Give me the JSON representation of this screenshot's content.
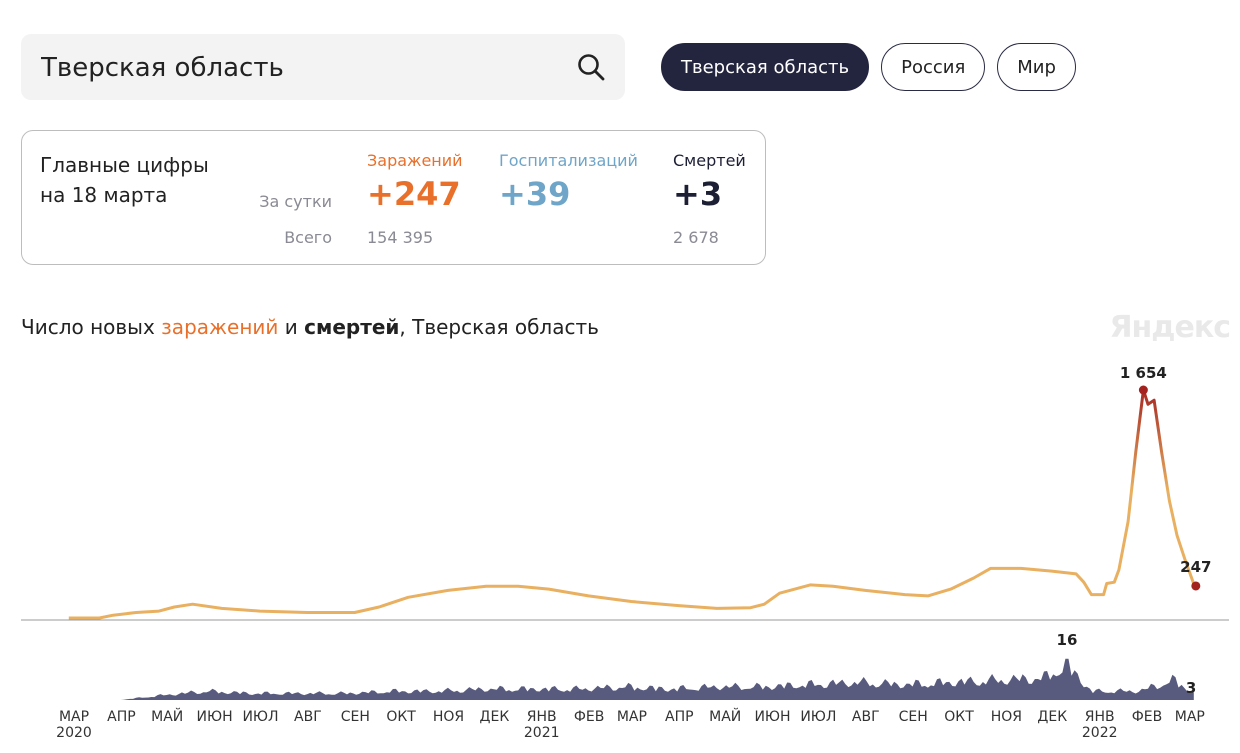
{
  "search": {
    "value": "Тверская область",
    "icon": "search-icon"
  },
  "region_buttons": [
    {
      "label": "Тверская область",
      "active": true
    },
    {
      "label": "Россия",
      "active": false
    },
    {
      "label": "Мир",
      "active": false
    }
  ],
  "stats": {
    "title_line1": "Главные цифры",
    "title_line2": "на 18 марта",
    "row_day": "За сутки",
    "row_total": "Всего",
    "infections": {
      "label": "Заражений",
      "day": "+247",
      "total": "154 395",
      "color": "#e8702a"
    },
    "hospitalizations": {
      "label": "Госпитализаций",
      "day": "+39",
      "color": "#6ea5c8"
    },
    "deaths": {
      "label": "Смертей",
      "day": "+3",
      "total": "2 678",
      "color": "#1d1f35"
    }
  },
  "chart_title": {
    "prefix": "Число новых ",
    "infections_word": "заражений",
    "mid": " и ",
    "deaths_word": "смертей",
    "suffix": ", Тверская область"
  },
  "watermark": "Яндекс",
  "chart_data": {
    "type": "line",
    "x_axis": {
      "months": [
        {
          "label": "МАР",
          "year": "2020"
        },
        {
          "label": "АПР"
        },
        {
          "label": "МАЙ"
        },
        {
          "label": "ИЮН"
        },
        {
          "label": "ИЮЛ"
        },
        {
          "label": "АВГ"
        },
        {
          "label": "СЕН"
        },
        {
          "label": "ОКТ"
        },
        {
          "label": "НОЯ"
        },
        {
          "label": "ДЕК"
        },
        {
          "label": "ЯНВ",
          "year": "2021"
        },
        {
          "label": "ФЕВ"
        },
        {
          "label": "МАР"
        },
        {
          "label": "АПР"
        },
        {
          "label": "МАЙ"
        },
        {
          "label": "ИЮН"
        },
        {
          "label": "ИЮЛ"
        },
        {
          "label": "АВГ"
        },
        {
          "label": "СЕН"
        },
        {
          "label": "ОКТ"
        },
        {
          "label": "НОЯ"
        },
        {
          "label": "ДЕК"
        },
        {
          "label": "ЯНВ",
          "year": "2022"
        },
        {
          "label": "ФЕВ"
        },
        {
          "label": "МАР"
        }
      ]
    },
    "infections": {
      "name": "заражений",
      "color_low": "#e8b060",
      "color_high": "#a32220",
      "max_label": "1 654",
      "last_label": "247",
      "points": [
        [
          "2020-03-12",
          0
        ],
        [
          "2020-04-01",
          0
        ],
        [
          "2020-04-10",
          20
        ],
        [
          "2020-04-25",
          40
        ],
        [
          "2020-05-10",
          50
        ],
        [
          "2020-05-20",
          80
        ],
        [
          "2020-06-01",
          100
        ],
        [
          "2020-06-20",
          70
        ],
        [
          "2020-07-15",
          50
        ],
        [
          "2020-08-15",
          40
        ],
        [
          "2020-09-15",
          40
        ],
        [
          "2020-10-01",
          80
        ],
        [
          "2020-10-20",
          150
        ],
        [
          "2020-11-15",
          200
        ],
        [
          "2020-12-10",
          230
        ],
        [
          "2020-12-31",
          230
        ],
        [
          "2021-01-20",
          210
        ],
        [
          "2021-02-15",
          160
        ],
        [
          "2021-03-15",
          120
        ],
        [
          "2021-04-15",
          90
        ],
        [
          "2021-05-10",
          70
        ],
        [
          "2021-06-01",
          75
        ],
        [
          "2021-06-10",
          100
        ],
        [
          "2021-06-20",
          180
        ],
        [
          "2021-07-10",
          240
        ],
        [
          "2021-07-25",
          230
        ],
        [
          "2021-08-15",
          200
        ],
        [
          "2021-09-10",
          170
        ],
        [
          "2021-09-25",
          160
        ],
        [
          "2021-10-10",
          210
        ],
        [
          "2021-10-25",
          290
        ],
        [
          "2021-11-05",
          360
        ],
        [
          "2021-11-25",
          360
        ],
        [
          "2021-12-15",
          340
        ],
        [
          "2021-12-31",
          320
        ],
        [
          "2022-01-05",
          260
        ],
        [
          "2022-01-10",
          170
        ],
        [
          "2022-01-18",
          170
        ],
        [
          "2022-01-20",
          250
        ],
        [
          "2022-01-25",
          260
        ],
        [
          "2022-01-28",
          350
        ],
        [
          "2022-02-03",
          700
        ],
        [
          "2022-02-08",
          1200
        ],
        [
          "2022-02-13",
          1654
        ],
        [
          "2022-02-16",
          1550
        ],
        [
          "2022-02-20",
          1580
        ],
        [
          "2022-02-25",
          1200
        ],
        [
          "2022-03-02",
          850
        ],
        [
          "2022-03-07",
          600
        ],
        [
          "2022-03-12",
          430
        ],
        [
          "2022-03-18",
          247
        ]
      ]
    },
    "deaths": {
      "name": "смертей",
      "color": "#585b7e",
      "max_label": "16",
      "last_label": "3",
      "points": [
        [
          "2020-03-12",
          0
        ],
        [
          "2020-04-15",
          0
        ],
        [
          "2020-05-10",
          2
        ],
        [
          "2020-06-10",
          4
        ],
        [
          "2020-07-10",
          3
        ],
        [
          "2020-08-10",
          3
        ],
        [
          "2020-09-10",
          3
        ],
        [
          "2020-10-10",
          4
        ],
        [
          "2020-11-10",
          4
        ],
        [
          "2020-12-10",
          5
        ],
        [
          "2021-01-10",
          5
        ],
        [
          "2021-02-10",
          5
        ],
        [
          "2021-03-10",
          6
        ],
        [
          "2021-04-10",
          5
        ],
        [
          "2021-05-10",
          6
        ],
        [
          "2021-06-10",
          6
        ],
        [
          "2021-07-10",
          7
        ],
        [
          "2021-08-10",
          8
        ],
        [
          "2021-09-10",
          7
        ],
        [
          "2021-10-10",
          8
        ],
        [
          "2021-11-10",
          9
        ],
        [
          "2021-12-10",
          10
        ],
        [
          "2021-12-25",
          16
        ],
        [
          "2022-01-10",
          4
        ],
        [
          "2022-02-10",
          4
        ],
        [
          "2022-03-05",
          9
        ],
        [
          "2022-03-18",
          3
        ]
      ]
    }
  }
}
